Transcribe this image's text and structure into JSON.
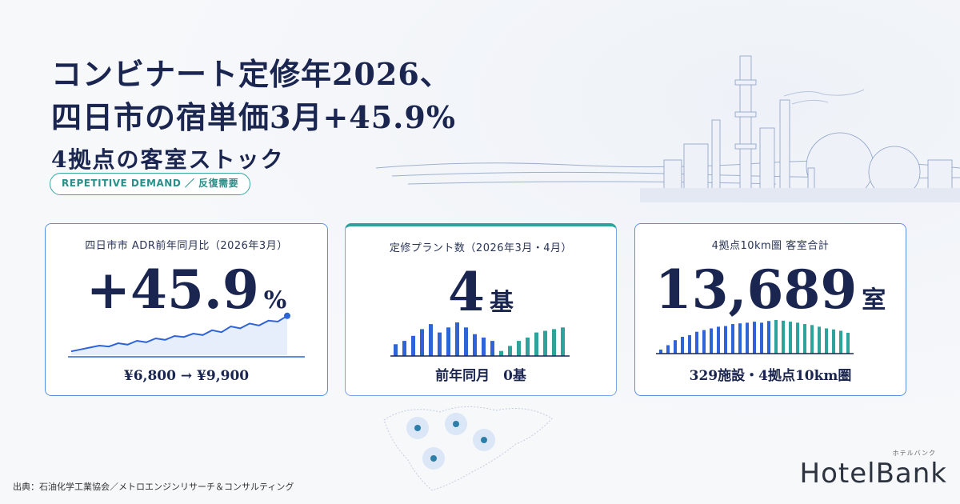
{
  "title": {
    "line1": "コンビナート定修年2026、",
    "line2": "四日市の宿単価3月+45.9%",
    "line3": "4拠点の客室ストック"
  },
  "tag": "REPETITIVE DEMAND ／ 反復需要",
  "cards": [
    {
      "label": "四日市市 ADR前年同月比（2026年3月）",
      "value": "+45.9",
      "unit": "%",
      "foot": "¥6,800 → ¥9,900",
      "trend": [
        0.08,
        0.12,
        0.16,
        0.2,
        0.18,
        0.25,
        0.22,
        0.3,
        0.27,
        0.35,
        0.32,
        0.4,
        0.38,
        0.45,
        0.42,
        0.52,
        0.48,
        0.6,
        0.56,
        0.66,
        0.62,
        0.72,
        0.7,
        0.82
      ]
    },
    {
      "label": "定修プラント数（2026年3月・4月）",
      "value": "4",
      "unit": "基",
      "foot": "前年同月　0基",
      "bars_blue": [
        0.35,
        0.45,
        0.6,
        0.8,
        0.95,
        0.7,
        0.85,
        1.0,
        0.85,
        0.65,
        0.55,
        0.45
      ],
      "bars_teal": [
        0.15,
        0.3,
        0.45,
        0.55,
        0.7,
        0.75,
        0.8,
        0.85
      ]
    },
    {
      "label": "4拠点10km圏 客室合計",
      "value": "13,689",
      "unit": "室",
      "foot": "329施設・4拠点10km圏",
      "bars_blue": [
        0.12,
        0.25,
        0.4,
        0.5,
        0.55,
        0.65,
        0.7,
        0.75,
        0.8,
        0.82,
        0.88,
        0.9,
        0.92,
        0.95,
        0.92,
        0.97
      ],
      "bars_teal": [
        1.0,
        0.98,
        0.95,
        0.92,
        0.88,
        0.85,
        0.8,
        0.75,
        0.72,
        0.68,
        0.62
      ]
    }
  ],
  "source": "出典：石油化学工業協会／メトロエンジンリサーチ＆コンサルティング",
  "logo": {
    "text": "HotelBank",
    "sub": "ホテルバンク"
  },
  "colors": {
    "navy": "#1a2550",
    "blue": "#2f63d8",
    "teal": "#2da39c"
  }
}
